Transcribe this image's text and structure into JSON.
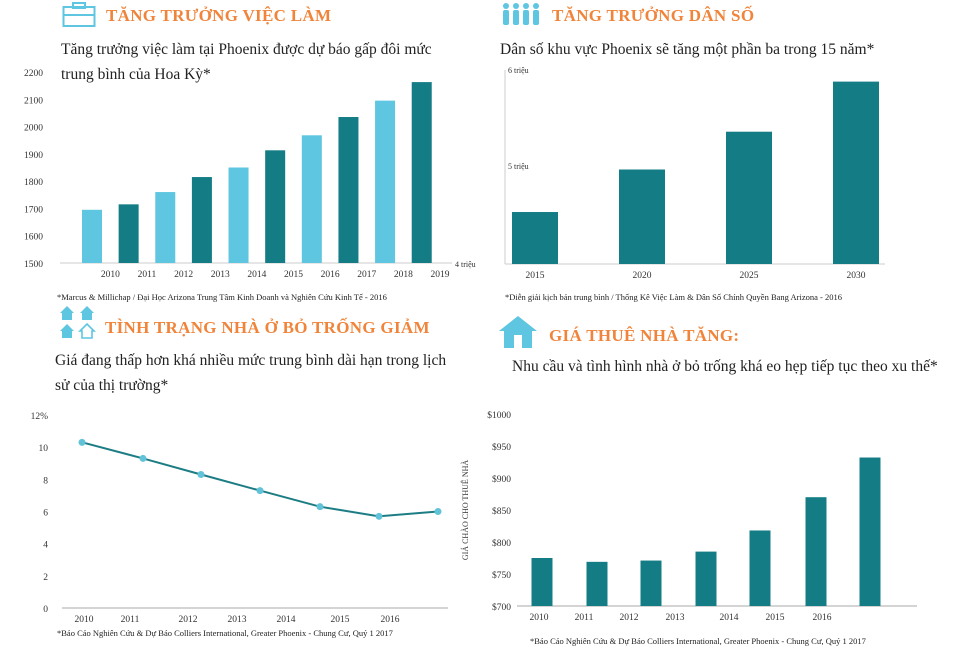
{
  "colors": {
    "teal": "#137c84",
    "light": "#5ec6e0",
    "orange": "#f0843a",
    "line": "#1d7d84",
    "dot": "#62c3d8"
  },
  "panels": [
    {
      "title": "TĂNG TRƯỞNG VIỆC LÀM",
      "subtitle": "Tăng trưởng việc làm tại Phoenix được dự báo gấp đôi mức trung bình của Hoa Kỳ*",
      "source": "*Marcus & Millichap / Đại Học Arizona Trung Tâm Kinh Doanh và Nghiên Cứu Kinh Tế - 2016",
      "icon": "briefcase-icon"
    },
    {
      "title": "TĂNG TRƯỞNG DÂN SỐ",
      "subtitle": "Dân số khu vực Phoenix sẽ tăng một phần ba trong 15 năm*",
      "source": "*Diễn giải kịch bản trung bình / Thống Kê Việc Làm & Dân Số Chính Quyền Bang Arizona - 2016",
      "icon": "people-icon"
    },
    {
      "title": "TÌNH TRẠNG NHÀ Ở BỎ TRỐNG GIẢM",
      "subtitle": "Giá đang thấp hơn khá nhiều mức trung bình dài hạn trong lịch sử của thị trường*",
      "source": "*Báo Cáo Nghiên Cứu & Dự Báo Colliers International, Greater Phoenix - Chung Cư, Quý 1 2017",
      "icon": "houses-icon"
    },
    {
      "title": "GIÁ THUÊ NHÀ TĂNG:",
      "subtitle": "Nhu cầu và tình hình nhà ở bỏ trống khá eo hẹp tiếp tục theo xu thế*",
      "source": "*Báo Cáo Nghiên Cứu & Dự Báo Colliers International, Greater Phoenix - Chung Cư, Quý 1 2017",
      "icon": "house-icon"
    }
  ],
  "chart_data": [
    {
      "type": "bar",
      "categories": [
        "",
        "2010",
        "2011",
        "2012",
        "2013",
        "2014",
        "2015",
        "2016",
        "2017",
        "2018",
        "2019",
        ""
      ],
      "values": [
        1695,
        1715,
        1760,
        1815,
        1850,
        1913,
        1968,
        2035,
        2095,
        2163,
        null,
        null
      ],
      "yticks": [
        "2200",
        "2100",
        "2000",
        "1900",
        "1800",
        "1700",
        "1600",
        "1500"
      ],
      "ylim": [
        1500,
        2200
      ],
      "extra_label": "4 triệu"
    },
    {
      "type": "bar",
      "categories": [
        "2015",
        "2020",
        "2025",
        "2030"
      ],
      "values": [
        4.55,
        5.0,
        5.4,
        5.93
      ],
      "yticks": [
        "6 triệu",
        "5 triệu"
      ],
      "ylim": [
        4.0,
        6.0
      ]
    },
    {
      "type": "line",
      "categories": [
        "2010",
        "2011",
        "2012",
        "2013",
        "2014",
        "2015",
        "2016"
      ],
      "values": [
        10.3,
        9.3,
        8.3,
        7.3,
        6.3,
        5.7,
        6.0
      ],
      "yticks": [
        "12%",
        "10",
        "8",
        "6",
        "4",
        "2",
        "0"
      ],
      "ylim": [
        0,
        12
      ]
    },
    {
      "type": "bar",
      "categories": [
        "2010",
        "2011",
        "2012",
        "2013",
        "2014",
        "2015",
        "2016"
      ],
      "values": [
        775,
        769,
        771,
        785,
        818,
        870,
        932
      ],
      "yticks": [
        "$1000",
        "$950",
        "$900",
        "$850",
        "$800",
        "$750",
        "$700"
      ],
      "ylim": [
        700,
        1000
      ],
      "ylabel": "GIÁ CHÀO CHO THUÊ NHÀ"
    }
  ]
}
